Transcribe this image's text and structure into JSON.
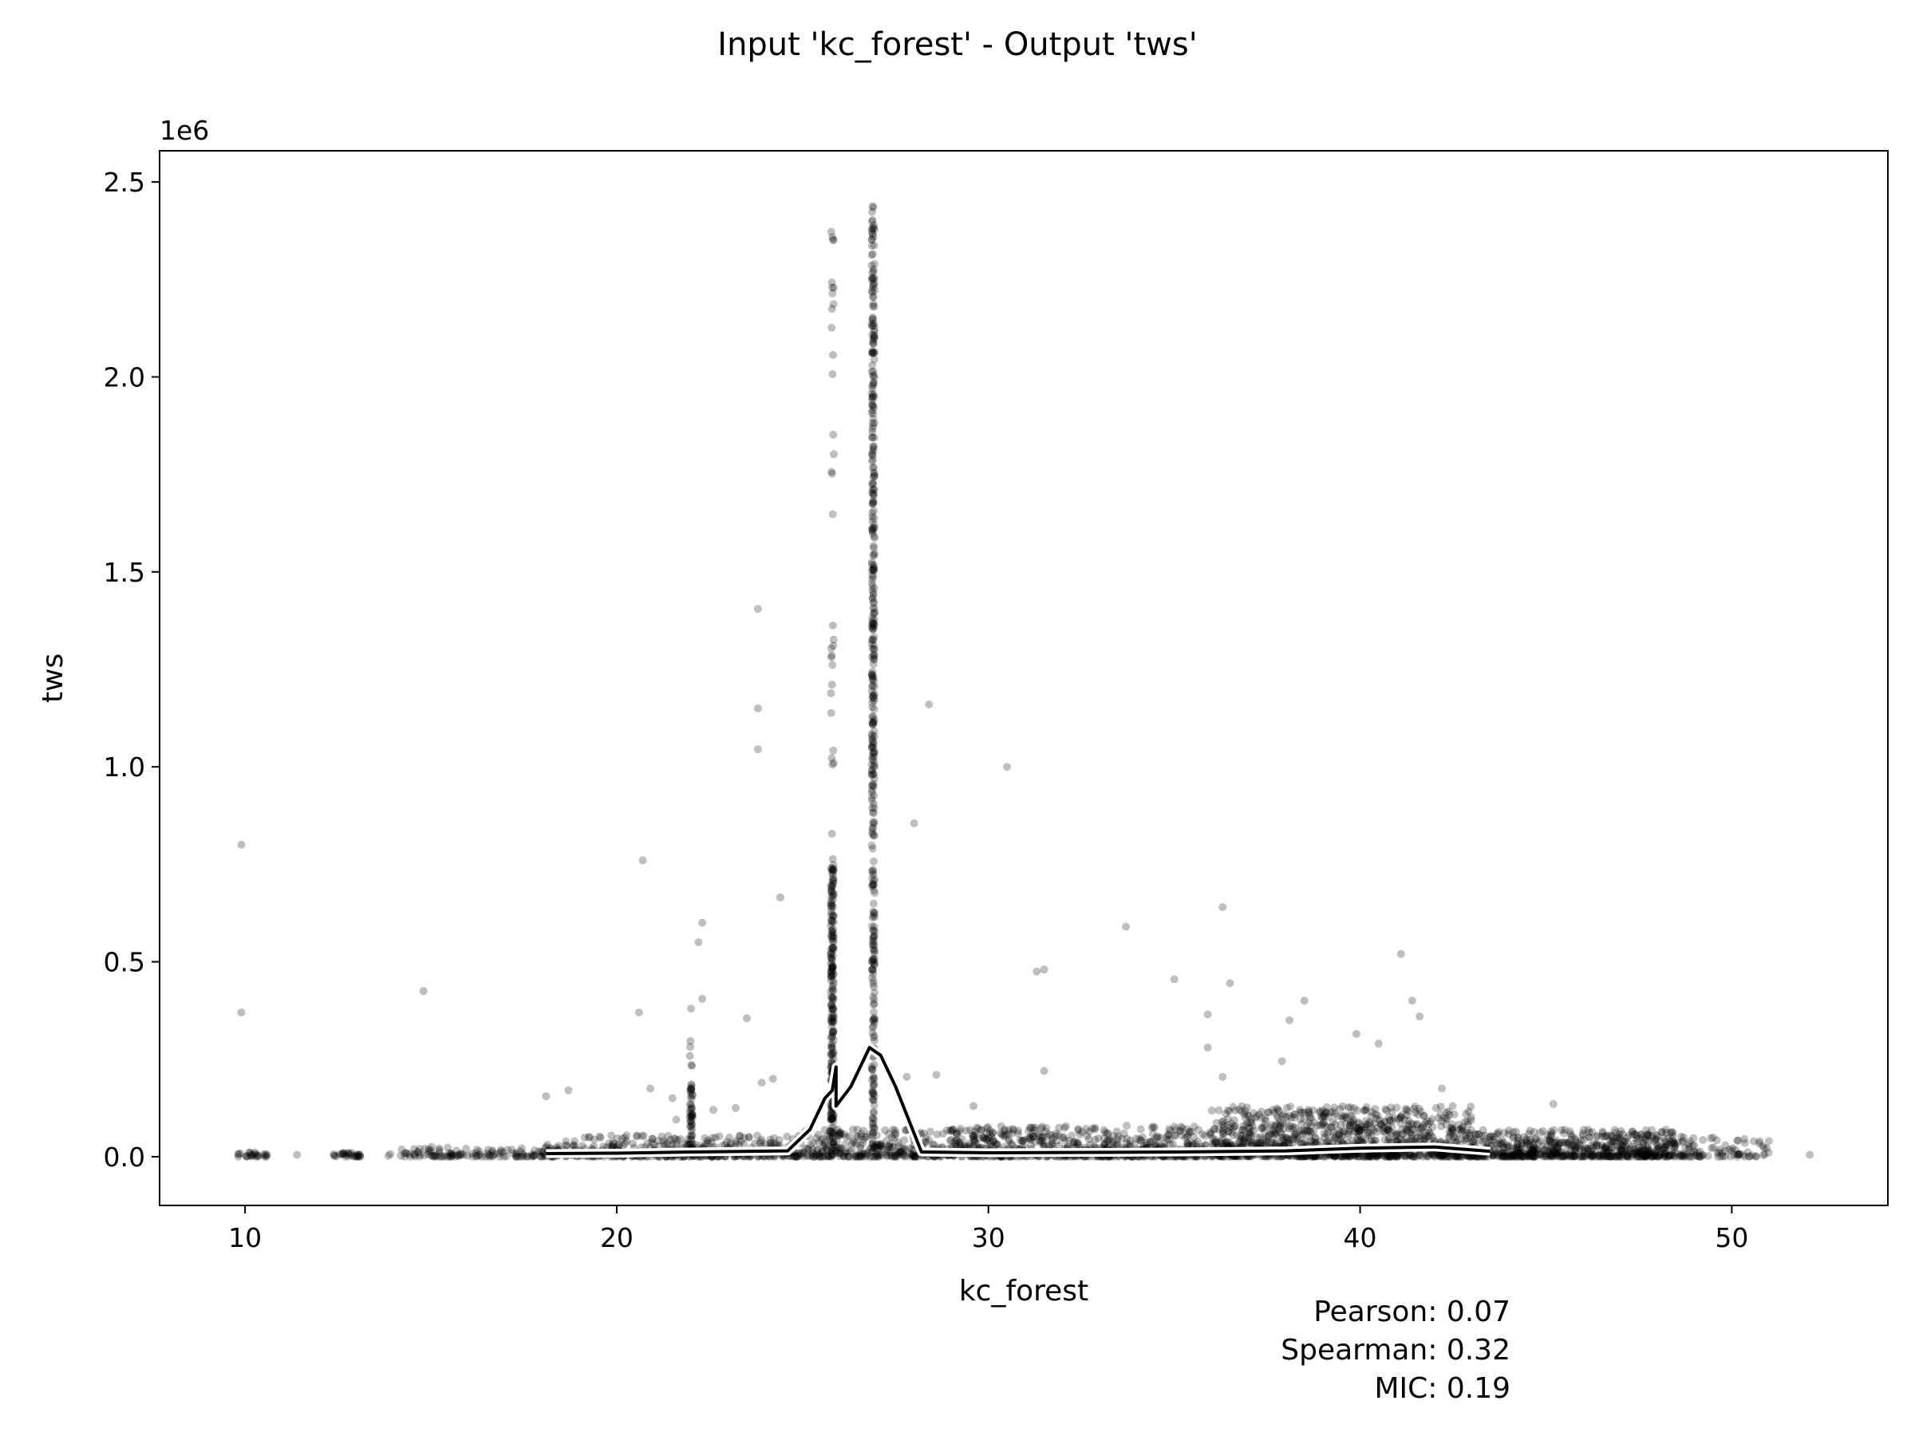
{
  "chart_data": {
    "type": "scatter",
    "title": "Input 'kc_forest' - Output 'tws'",
    "xlabel": "kc_forest",
    "ylabel": "tws",
    "y_offset_label": "1e6",
    "xlim": [
      7.7,
      54.2
    ],
    "ylim": [
      -125000,
      2580000
    ],
    "x_ticks": [
      10,
      20,
      30,
      40,
      50
    ],
    "y_ticks": [
      0,
      500000,
      1000000,
      1500000,
      2000000,
      2500000
    ],
    "y_tick_labels": [
      "0.0",
      "0.5",
      "1.0",
      "1.5",
      "2.0",
      "2.5"
    ],
    "grid": false,
    "point_color": "#000000",
    "point_opacity": 0.25,
    "stats": {
      "pearson": "Pearson: 0.07",
      "spearman": "Spearman: 0.32",
      "mic": "MIC: 0.19"
    },
    "clusters": [
      {
        "x_min": 9.8,
        "x_max": 10.6,
        "y_max": 12000,
        "count": 25
      },
      {
        "x_min": 12.3,
        "x_max": 13.2,
        "y_max": 12000,
        "count": 30
      },
      {
        "x_min": 13.8,
        "x_max": 18.0,
        "y_max": 25000,
        "count": 120
      },
      {
        "x_min": 18.0,
        "x_max": 25.0,
        "y_max": 55000,
        "count": 420
      },
      {
        "x_min": 25.0,
        "x_max": 29.0,
        "y_max": 70000,
        "count": 300
      },
      {
        "x_min": 29.0,
        "x_max": 36.0,
        "y_max": 80000,
        "count": 650
      },
      {
        "x_min": 36.0,
        "x_max": 43.0,
        "y_max": 130000,
        "count": 1100
      },
      {
        "x_min": 43.0,
        "x_max": 48.5,
        "y_max": 70000,
        "count": 650
      },
      {
        "x_min": 48.5,
        "x_max": 51.0,
        "y_max": 55000,
        "count": 90
      }
    ],
    "vertical_bands": [
      {
        "x": 22.0,
        "y_max": 320000,
        "dense_max": 200000,
        "count": 60
      },
      {
        "x": 25.8,
        "y_max": 2450000,
        "dense_max": 750000,
        "count": 260
      },
      {
        "x": 26.9,
        "y_max": 2450000,
        "dense_max": 2400000,
        "count": 420
      }
    ],
    "outliers": [
      [
        9.9,
        800000
      ],
      [
        9.9,
        370000
      ],
      [
        14.8,
        425000
      ],
      [
        18.1,
        155000
      ],
      [
        18.7,
        170000
      ],
      [
        20.6,
        370000
      ],
      [
        20.7,
        760000
      ],
      [
        20.9,
        175000
      ],
      [
        21.5,
        150000
      ],
      [
        21.6,
        95000
      ],
      [
        22.0,
        380000
      ],
      [
        22.2,
        550000
      ],
      [
        22.3,
        600000
      ],
      [
        22.3,
        405000
      ],
      [
        22.6,
        120000
      ],
      [
        23.2,
        125000
      ],
      [
        23.5,
        355000
      ],
      [
        23.8,
        1405000
      ],
      [
        23.8,
        1150000
      ],
      [
        23.8,
        1045000
      ],
      [
        23.9,
        190000
      ],
      [
        24.2,
        200000
      ],
      [
        24.4,
        665000
      ],
      [
        27.8,
        205000
      ],
      [
        28.0,
        855000
      ],
      [
        28.4,
        1160000
      ],
      [
        28.6,
        210000
      ],
      [
        29.6,
        130000
      ],
      [
        30.5,
        1000000
      ],
      [
        31.3,
        475000
      ],
      [
        31.5,
        480000
      ],
      [
        31.5,
        220000
      ],
      [
        33.7,
        590000
      ],
      [
        35.0,
        455000
      ],
      [
        35.9,
        280000
      ],
      [
        35.9,
        365000
      ],
      [
        36.3,
        640000
      ],
      [
        36.3,
        205000
      ],
      [
        36.5,
        445000
      ],
      [
        37.9,
        245000
      ],
      [
        38.1,
        350000
      ],
      [
        38.5,
        400000
      ],
      [
        39.9,
        315000
      ],
      [
        40.5,
        290000
      ],
      [
        41.1,
        520000
      ],
      [
        41.4,
        400000
      ],
      [
        41.6,
        360000
      ],
      [
        42.2,
        175000
      ],
      [
        45.2,
        135000
      ],
      [
        52.1,
        5000
      ],
      [
        51.0,
        40000
      ],
      [
        10.5,
        5000
      ],
      [
        11.4,
        5000
      ]
    ],
    "trend_line": [
      [
        18.1,
        8000
      ],
      [
        20.0,
        9000
      ],
      [
        22.0,
        12000
      ],
      [
        24.6,
        15000
      ],
      [
        25.2,
        70000
      ],
      [
        25.6,
        150000
      ],
      [
        25.8,
        170000
      ],
      [
        25.9,
        230000
      ],
      [
        25.9,
        130000
      ],
      [
        26.3,
        180000
      ],
      [
        26.8,
        280000
      ],
      [
        27.1,
        260000
      ],
      [
        27.5,
        180000
      ],
      [
        28.0,
        60000
      ],
      [
        28.2,
        12000
      ],
      [
        30.0,
        10000
      ],
      [
        35.0,
        12000
      ],
      [
        38.0,
        15000
      ],
      [
        40.0,
        22000
      ],
      [
        42.0,
        25000
      ],
      [
        43.5,
        14000
      ]
    ]
  }
}
